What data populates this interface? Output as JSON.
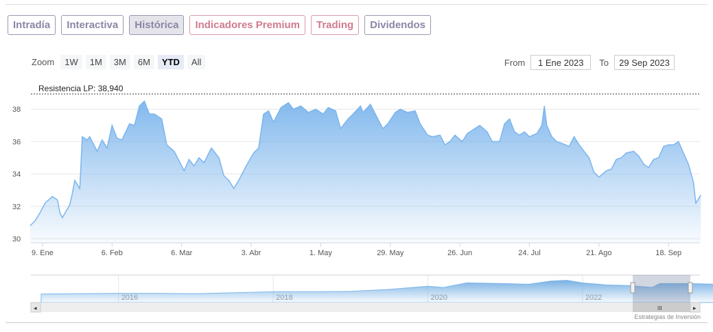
{
  "tabs": [
    {
      "label": "Intradía",
      "style": "normal"
    },
    {
      "label": "Interactiva",
      "style": "normal"
    },
    {
      "label": "Histórica",
      "style": "active"
    },
    {
      "label": "Indicadores Premium",
      "style": "red"
    },
    {
      "label": "Trading",
      "style": "red"
    },
    {
      "label": "Dividendos",
      "style": "normal"
    }
  ],
  "zoom": {
    "label": "Zoom",
    "options": [
      "1W",
      "1M",
      "3M",
      "6M",
      "YTD",
      "All"
    ],
    "selected": "YTD"
  },
  "range": {
    "from_label": "From",
    "from_value": "1 Ene 2023",
    "to_label": "To",
    "to_value": "29 Sep 2023"
  },
  "credit": "Estrategias de Inversión",
  "colors": {
    "line": "#7cb5ec",
    "resistance": "#333333"
  },
  "chart_data": {
    "type": "area",
    "x_unit": "day of year 2023",
    "resistance": {
      "label": "Resistencia LP: 38,940",
      "value": 38.94
    },
    "ylim": [
      30,
      38.94
    ],
    "yticks": [
      30,
      32,
      34,
      36,
      38
    ],
    "xticks": [
      {
        "day": 8,
        "label": "9. Ene"
      },
      {
        "day": 36,
        "label": "6. Feb"
      },
      {
        "day": 64,
        "label": "6. Mar"
      },
      {
        "day": 92,
        "label": "3. Abr"
      },
      {
        "day": 120,
        "label": "1. May"
      },
      {
        "day": 148,
        "label": "29. May"
      },
      {
        "day": 176,
        "label": "26. Jun"
      },
      {
        "day": 204,
        "label": "24. Jul"
      },
      {
        "day": 232,
        "label": "21. Ago"
      },
      {
        "day": 260,
        "label": "18. Sep"
      }
    ],
    "x": [
      3,
      5,
      7,
      9,
      12,
      14,
      15,
      16,
      19,
      20,
      21,
      23,
      24,
      26,
      27,
      30,
      32,
      34,
      36,
      38,
      40,
      43,
      45,
      47,
      49,
      51,
      53,
      56,
      58,
      61,
      63,
      65,
      67,
      69,
      71,
      73,
      76,
      79,
      81,
      83,
      85,
      87,
      90,
      93,
      95,
      97,
      99,
      101,
      104,
      107,
      109,
      112,
      115,
      118,
      121,
      123,
      126,
      128,
      131,
      133,
      136,
      137,
      140,
      142,
      145,
      147,
      150,
      152,
      155,
      158,
      160,
      163,
      165,
      168,
      170,
      172,
      174,
      177,
      179,
      181,
      184,
      187,
      189,
      192,
      194,
      196,
      198,
      200,
      202,
      204,
      207,
      209,
      210,
      211,
      213,
      215,
      217,
      220,
      222,
      224,
      226,
      228,
      230,
      232,
      235,
      237,
      239,
      241,
      243,
      246,
      248,
      250,
      252,
      254,
      256,
      258,
      260,
      262,
      264,
      266,
      268,
      270,
      271,
      273
    ],
    "y": [
      30.8,
      31.1,
      31.6,
      32.2,
      32.6,
      32.4,
      31.6,
      31.3,
      32.1,
      32.8,
      33.6,
      33.1,
      36.3,
      36.1,
      36.3,
      35.4,
      36.1,
      35.6,
      37.0,
      36.2,
      36.1,
      37.1,
      37.0,
      38.2,
      38.5,
      37.7,
      37.7,
      37.4,
      35.8,
      35.4,
      34.8,
      34.2,
      34.9,
      34.5,
      35.0,
      34.7,
      35.6,
      35.0,
      33.9,
      33.6,
      33.1,
      33.6,
      34.5,
      35.3,
      35.6,
      37.7,
      37.9,
      37.2,
      38.1,
      38.4,
      38.0,
      38.2,
      37.8,
      38.0,
      37.7,
      38.1,
      37.9,
      36.8,
      37.4,
      37.7,
      38.2,
      37.8,
      38.3,
      37.7,
      36.8,
      37.1,
      37.8,
      38.0,
      37.8,
      37.9,
      37.1,
      36.4,
      36.3,
      36.4,
      35.8,
      36.0,
      36.4,
      36.0,
      36.5,
      36.7,
      37.0,
      36.6,
      36.0,
      36.0,
      37.1,
      37.4,
      36.6,
      36.4,
      36.6,
      36.3,
      36.5,
      37.0,
      38.2,
      37.0,
      36.3,
      36.0,
      35.9,
      35.7,
      36.3,
      35.8,
      35.4,
      35.0,
      34.1,
      33.8,
      34.2,
      34.3,
      34.9,
      35.0,
      35.3,
      35.4,
      35.1,
      34.6,
      34.4,
      34.9,
      35.0,
      35.7,
      35.8,
      35.8,
      36.0,
      35.3,
      34.6,
      33.5,
      32.2,
      32.7
    ]
  },
  "navigator": {
    "xticks": [
      "2016",
      "2018",
      "2020",
      "2022"
    ],
    "x": [
      2015,
      2015.5,
      2016,
      2016.5,
      2017,
      2017.5,
      2018,
      2018.5,
      2019,
      2019.5,
      2020,
      2020.2,
      2020.5,
      2021,
      2021.3,
      2021.6,
      2021.8,
      2022,
      2022.3,
      2022.6,
      2022.9,
      2023,
      2023.4,
      2023.75
    ],
    "y": [
      12,
      12.5,
      13,
      13,
      12.5,
      14,
      15.5,
      15.5,
      16,
      19,
      24,
      22,
      29,
      28,
      27,
      32,
      33,
      29,
      26,
      25,
      22,
      28,
      28,
      27
    ]
  }
}
